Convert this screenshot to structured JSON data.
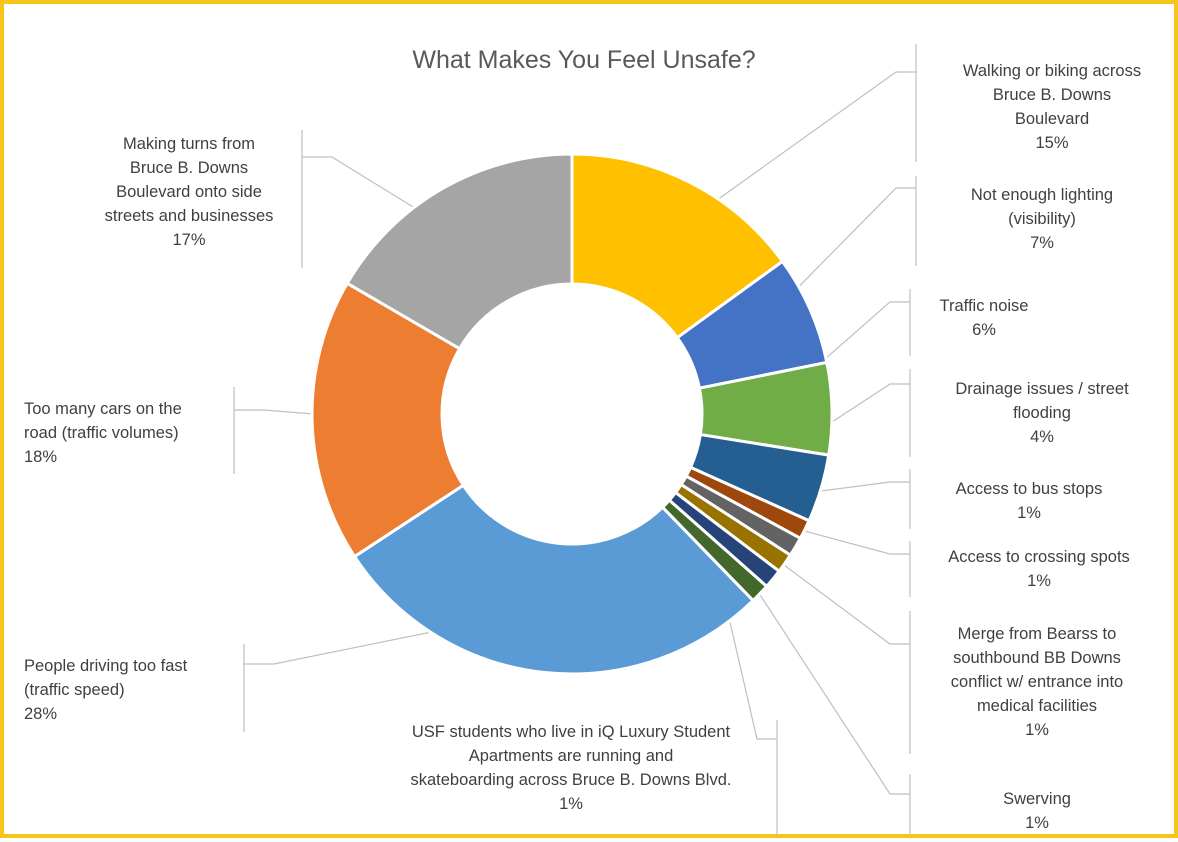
{
  "chart_data": {
    "type": "pie",
    "variant": "doughnut",
    "title": "What Makes You Feel Unsafe?",
    "border_color": "#F5C518",
    "slices": [
      {
        "label": "Walking or biking across Bruce B. Downs Boulevard",
        "label_lines": [
          "Walking or biking across",
          "Bruce B. Downs",
          "Boulevard"
        ],
        "percent_label": "15%",
        "value": 15.0,
        "color": "#FFC000"
      },
      {
        "label": "Not enough lighting (visibility)",
        "label_lines": [
          "Not enough lighting",
          "(visibility)"
        ],
        "percent_label": "7%",
        "value": 6.8,
        "color": "#4472C4"
      },
      {
        "label": "Traffic noise",
        "label_lines": [
          "Traffic noise"
        ],
        "percent_label": "6%",
        "value": 5.7,
        "color": "#70AD47"
      },
      {
        "label": "Drainage issues / street flooding",
        "label_lines": [
          "Drainage issues / street",
          "flooding"
        ],
        "percent_label": "4%",
        "value": 4.2,
        "color": "#255E91"
      },
      {
        "label": "Access to bus stops",
        "label_lines": [
          "Access to bus stops"
        ],
        "percent_label": "1%",
        "value": 1.2,
        "color": "#9E480E"
      },
      {
        "label": "Access to crossing spots",
        "label_lines": [
          "Access to crossing spots"
        ],
        "percent_label": "1%",
        "value": 1.2,
        "color": "#636363"
      },
      {
        "label": "Merge from Bearss to southbound BB Downs conflict w/ entrance into medical facilities",
        "label_lines": [
          "Merge from Bearss to",
          "southbound BB Downs",
          "conflict w/ entrance into",
          "medical facilities"
        ],
        "percent_label": "1%",
        "value": 1.2,
        "color": "#997300"
      },
      {
        "label": "Swerving",
        "label_lines": [
          "Swerving"
        ],
        "percent_label": "1%",
        "value": 1.2,
        "color": "#264478"
      },
      {
        "label": "USF students who live in iQ Luxury Student Apartments are running and skateboarding across Bruce B. Downs Blvd.",
        "label_lines": [
          "USF students who live in iQ Luxury Student",
          "Apartments are running and",
          "skateboarding across Bruce B. Downs Blvd."
        ],
        "percent_label": "1%",
        "value": 1.2,
        "color": "#43682B"
      },
      {
        "label": "People driving too fast (traffic speed)",
        "label_lines": [
          "People driving too fast",
          "(traffic speed)"
        ],
        "percent_label": "28%",
        "value": 28.0,
        "color": "#5B9BD5"
      },
      {
        "label": "Too many cars on the road (traffic volumes)",
        "label_lines": [
          "Too many cars on the",
          "road (traffic volumes)"
        ],
        "percent_label": "18%",
        "value": 17.6,
        "color": "#ED7D31"
      },
      {
        "label": "Making turns from Bruce B. Downs Boulevard onto side streets and businesses",
        "label_lines": [
          "Making turns from",
          "Bruce B. Downs",
          "Boulevard onto side",
          "streets and businesses"
        ],
        "percent_label": "17%",
        "value": 16.6,
        "color": "#A5A5A5"
      }
    ],
    "legend": "none",
    "data_labels": "outside-with-leader-lines"
  }
}
